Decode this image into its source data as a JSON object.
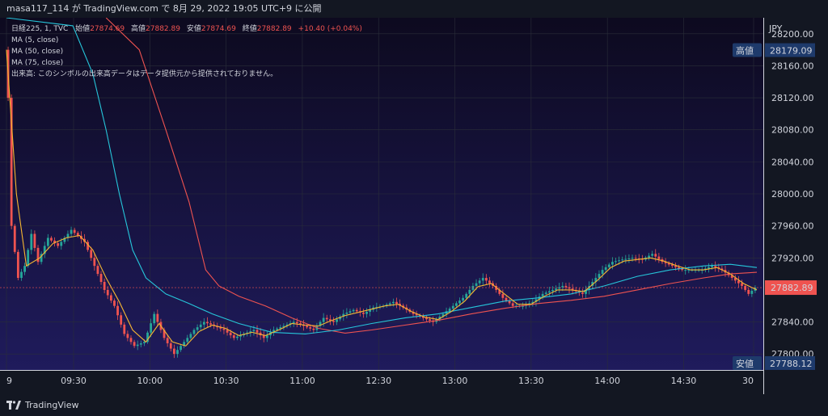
{
  "header": {
    "caption": "masa117_114 が TradingView.com で 8月 29, 2022 19:05 UTC+9 に公開"
  },
  "legend": {
    "line1_prefix": "日経225, 1, TVC",
    "open_label": "始値",
    "open_value": "27874.69",
    "high_label": "高値",
    "high_value": "27882.89",
    "low_label": "安値",
    "low_value": "27874.69",
    "close_label": "終値",
    "close_value": "27882.89",
    "change": "+10.40 (+0.04%)",
    "ma1": "MA (5, close)",
    "ma2": "MA (50, close)",
    "ma3": "MA (75, close)",
    "volume_note": "出来高: このシンボルの出来高データはデータ提供元から提供されておりません。"
  },
  "footer": {
    "logo_text": "TradingView"
  },
  "colors": {
    "background": "#131722",
    "plot_top": "#0d0a1f",
    "plot_bottom": "#1f1b5c",
    "candle_up": "#26a69a",
    "candle_down": "#ef5350",
    "ma5": "#f7b731",
    "ma50": "#26c6da",
    "ma75": "#ef5350",
    "axis_text": "#d1d4dc",
    "label_bg": "#1e3a6b",
    "last_price_bg": "#ef5350"
  },
  "chart_data": {
    "type": "candlestick",
    "currency_label": "JPY",
    "x_ticks": [
      "9",
      "09:30",
      "10:00",
      "10:30",
      "11:00",
      "12:30",
      "13:00",
      "13:30",
      "14:00",
      "14:30",
      "30"
    ],
    "y_ticks": [
      "28200.00",
      "28160.00",
      "28120.00",
      "28080.00",
      "28040.00",
      "28000.00",
      "27960.00",
      "27920.00",
      "27840.00",
      "27800.00"
    ],
    "ylim": [
      27780,
      28220
    ],
    "high_marker": {
      "label": "高値",
      "value": "28179.09"
    },
    "low_marker": {
      "label": "安値",
      "value": "27788.12"
    },
    "last_price": "27882.89",
    "price_path": [
      [
        0,
        28180
      ],
      [
        1,
        28120
      ],
      [
        2,
        27960
      ],
      [
        4,
        27895
      ],
      [
        6,
        27910
      ],
      [
        8,
        27950
      ],
      [
        10,
        27915
      ],
      [
        13,
        27945
      ],
      [
        16,
        27935
      ],
      [
        20,
        27955
      ],
      [
        24,
        27940
      ],
      [
        27,
        27910
      ],
      [
        30,
        27880
      ],
      [
        33,
        27860
      ],
      [
        36,
        27825
      ],
      [
        39,
        27810
      ],
      [
        42,
        27815
      ],
      [
        45,
        27850
      ],
      [
        48,
        27820
      ],
      [
        51,
        27800
      ],
      [
        54,
        27815
      ],
      [
        57,
        27830
      ],
      [
        60,
        27840
      ],
      [
        63,
        27835
      ],
      [
        66,
        27830
      ],
      [
        69,
        27820
      ],
      [
        72,
        27825
      ],
      [
        75,
        27830
      ],
      [
        78,
        27820
      ],
      [
        81,
        27830
      ],
      [
        84,
        27835
      ],
      [
        87,
        27840
      ],
      [
        90,
        27835
      ],
      [
        93,
        27830
      ],
      [
        96,
        27845
      ],
      [
        99,
        27840
      ],
      [
        102,
        27850
      ],
      [
        105,
        27855
      ],
      [
        108,
        27850
      ],
      [
        111,
        27858
      ],
      [
        114,
        27860
      ],
      [
        117,
        27865
      ],
      [
        120,
        27858
      ],
      [
        123,
        27850
      ],
      [
        126,
        27845
      ],
      [
        129,
        27840
      ],
      [
        132,
        27850
      ],
      [
        135,
        27860
      ],
      [
        138,
        27870
      ],
      [
        141,
        27885
      ],
      [
        144,
        27895
      ],
      [
        147,
        27885
      ],
      [
        150,
        27870
      ],
      [
        153,
        27860
      ],
      [
        156,
        27860
      ],
      [
        159,
        27865
      ],
      [
        162,
        27875
      ],
      [
        165,
        27880
      ],
      [
        168,
        27885
      ],
      [
        171,
        27880
      ],
      [
        174,
        27875
      ],
      [
        177,
        27890
      ],
      [
        180,
        27905
      ],
      [
        183,
        27915
      ],
      [
        186,
        27918
      ],
      [
        189,
        27920
      ],
      [
        192,
        27918
      ],
      [
        195,
        27925
      ],
      [
        198,
        27915
      ],
      [
        201,
        27910
      ],
      [
        204,
        27905
      ],
      [
        207,
        27905
      ],
      [
        210,
        27905
      ],
      [
        213,
        27910
      ],
      [
        216,
        27905
      ],
      [
        219,
        27895
      ],
      [
        222,
        27885
      ],
      [
        224,
        27875
      ],
      [
        226,
        27882.89
      ]
    ],
    "ma5_path": [
      [
        0,
        28180
      ],
      [
        3,
        28000
      ],
      [
        6,
        27910
      ],
      [
        10,
        27920
      ],
      [
        14,
        27938
      ],
      [
        18,
        27945
      ],
      [
        22,
        27948
      ],
      [
        26,
        27930
      ],
      [
        30,
        27895
      ],
      [
        34,
        27865
      ],
      [
        38,
        27830
      ],
      [
        42,
        27815
      ],
      [
        46,
        27838
      ],
      [
        50,
        27815
      ],
      [
        54,
        27810
      ],
      [
        58,
        27828
      ],
      [
        62,
        27836
      ],
      [
        66,
        27832
      ],
      [
        70,
        27823
      ],
      [
        74,
        27827
      ],
      [
        78,
        27823
      ],
      [
        82,
        27830
      ],
      [
        86,
        27838
      ],
      [
        90,
        27836
      ],
      [
        94,
        27835
      ],
      [
        98,
        27842
      ],
      [
        102,
        27848
      ],
      [
        106,
        27852
      ],
      [
        110,
        27856
      ],
      [
        114,
        27860
      ],
      [
        118,
        27862
      ],
      [
        122,
        27853
      ],
      [
        126,
        27846
      ],
      [
        130,
        27843
      ],
      [
        134,
        27853
      ],
      [
        138,
        27866
      ],
      [
        142,
        27884
      ],
      [
        146,
        27888
      ],
      [
        150,
        27875
      ],
      [
        154,
        27862
      ],
      [
        158,
        27862
      ],
      [
        162,
        27872
      ],
      [
        166,
        27880
      ],
      [
        170,
        27880
      ],
      [
        174,
        27878
      ],
      [
        178,
        27892
      ],
      [
        182,
        27908
      ],
      [
        186,
        27916
      ],
      [
        190,
        27918
      ],
      [
        194,
        27920
      ],
      [
        198,
        27916
      ],
      [
        202,
        27910
      ],
      [
        206,
        27905
      ],
      [
        210,
        27905
      ],
      [
        214,
        27908
      ],
      [
        218,
        27900
      ],
      [
        222,
        27888
      ],
      [
        226,
        27880
      ]
    ],
    "ma50_path": [
      [
        0,
        28220
      ],
      [
        20,
        28210
      ],
      [
        26,
        28150
      ],
      [
        30,
        28080
      ],
      [
        34,
        28000
      ],
      [
        38,
        27930
      ],
      [
        42,
        27895
      ],
      [
        48,
        27875
      ],
      [
        55,
        27863
      ],
      [
        62,
        27850
      ],
      [
        70,
        27838
      ],
      [
        80,
        27827
      ],
      [
        90,
        27825
      ],
      [
        100,
        27830
      ],
      [
        110,
        27838
      ],
      [
        120,
        27845
      ],
      [
        130,
        27850
      ],
      [
        140,
        27858
      ],
      [
        150,
        27866
      ],
      [
        160,
        27870
      ],
      [
        170,
        27875
      ],
      [
        180,
        27885
      ],
      [
        190,
        27897
      ],
      [
        200,
        27905
      ],
      [
        210,
        27910
      ],
      [
        218,
        27912
      ],
      [
        226,
        27908
      ]
    ],
    "ma75_path": [
      [
        30,
        28220
      ],
      [
        40,
        28180
      ],
      [
        48,
        28080
      ],
      [
        55,
        27990
      ],
      [
        60,
        27905
      ],
      [
        64,
        27885
      ],
      [
        70,
        27872
      ],
      [
        78,
        27860
      ],
      [
        86,
        27845
      ],
      [
        94,
        27832
      ],
      [
        102,
        27826
      ],
      [
        110,
        27830
      ],
      [
        120,
        27836
      ],
      [
        130,
        27842
      ],
      [
        140,
        27850
      ],
      [
        150,
        27857
      ],
      [
        160,
        27863
      ],
      [
        170,
        27867
      ],
      [
        180,
        27872
      ],
      [
        190,
        27880
      ],
      [
        200,
        27888
      ],
      [
        210,
        27895
      ],
      [
        218,
        27900
      ],
      [
        226,
        27902
      ]
    ]
  }
}
